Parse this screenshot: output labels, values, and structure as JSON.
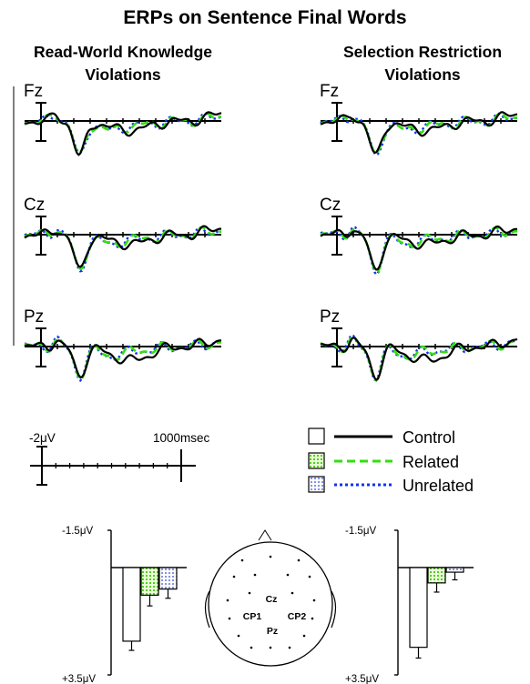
{
  "title": "ERPs on Sentence Final Words",
  "panels": [
    {
      "title_line1": "Read-World Knowledge",
      "title_line2": "Violations"
    },
    {
      "title_line1": "Selection Restriction",
      "title_line2": "Violations"
    }
  ],
  "electrodes": [
    "Fz",
    "Cz",
    "Pz"
  ],
  "scale_bar": {
    "amplitude": "-2μV",
    "time": "1000msec"
  },
  "legend": [
    {
      "label": "Control",
      "color": "#000000",
      "dash": "solid",
      "pattern": "open"
    },
    {
      "label": "Related",
      "color": "#33dd11",
      "dash": "dashed",
      "pattern": "green-grid"
    },
    {
      "label": "Unrelated",
      "color": "#1133ee",
      "dash": "dotted",
      "pattern": "blue-dots"
    }
  ],
  "bar_axes": {
    "top": "-1.5μV",
    "bottom": "+3.5μV"
  },
  "head_sites": [
    "Cz",
    "CP1",
    "CP2",
    "Pz"
  ],
  "chart_data": [
    {
      "type": "bar",
      "panel": "Read-World Knowledge Violations",
      "categories": [
        "Control",
        "Related",
        "Unrelated"
      ],
      "values": [
        2.4,
        0.9,
        0.7
      ],
      "error": [
        0.3,
        0.35,
        0.3
      ],
      "ylim": [
        -1.5,
        3.5
      ],
      "ytick_labels": [
        "-1.5μV",
        "+3.5μV"
      ]
    },
    {
      "type": "bar",
      "panel": "Selection Restriction Violations",
      "categories": [
        "Control",
        "Related",
        "Unrelated"
      ],
      "values": [
        2.6,
        0.5,
        0.15
      ],
      "error": [
        0.35,
        0.3,
        0.25
      ],
      "ylim": [
        -1.5,
        3.5
      ],
      "ytick_labels": [
        "-1.5μV",
        "+3.5μV"
      ]
    }
  ]
}
